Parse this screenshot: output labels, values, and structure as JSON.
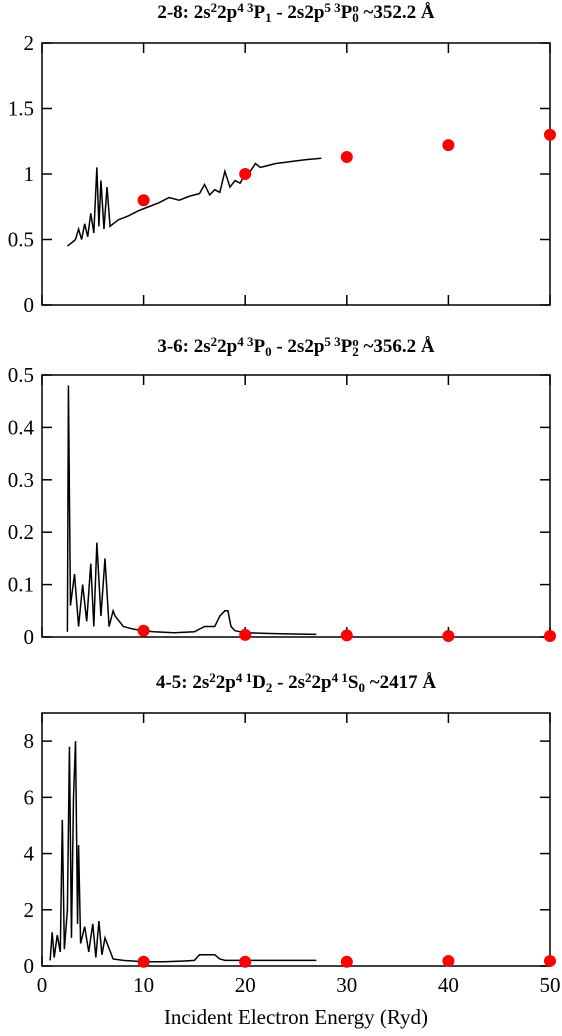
{
  "chart_data": [
    {
      "type": "line",
      "title": [
        {
          "text": "2-8:  2s"
        },
        {
          "sup": "2"
        },
        {
          "text": "2p"
        },
        {
          "sup": "4 3"
        },
        {
          "text": "P"
        },
        {
          "sub": "1"
        },
        {
          "text": " - 2s2p"
        },
        {
          "sup": "5 3"
        },
        {
          "text": "P"
        },
        {
          "sup": "o"
        },
        {
          "sub": "0"
        },
        {
          "text": " ~352.2 Å"
        }
      ],
      "xlim": [
        0,
        50
      ],
      "xticks": [
        0,
        10,
        20,
        30,
        40,
        50
      ],
      "xtick_labels": false,
      "ylim": [
        0,
        2
      ],
      "yticks": [
        0,
        0.5,
        1,
        1.5,
        2
      ],
      "series": [
        {
          "type": "line",
          "color": "#000000",
          "x": [
            2.5,
            3,
            3.3,
            3.6,
            3.9,
            4.2,
            4.5,
            4.8,
            5.1,
            5.4,
            5.6,
            5.8,
            6.1,
            6.4,
            6.7,
            7,
            7.5,
            8.5,
            9.5,
            10.5,
            11.5,
            12.5,
            13.5,
            14.5,
            15.5,
            16,
            16.5,
            17,
            17.5,
            18,
            18.5,
            19,
            19.5,
            20,
            20.5,
            21,
            21.5,
            22,
            23,
            24,
            25,
            26,
            27.5
          ],
          "values": [
            0.45,
            0.48,
            0.5,
            0.58,
            0.5,
            0.62,
            0.52,
            0.7,
            0.55,
            1.05,
            0.6,
            0.95,
            0.58,
            0.9,
            0.6,
            0.62,
            0.65,
            0.68,
            0.72,
            0.75,
            0.78,
            0.82,
            0.8,
            0.83,
            0.85,
            0.92,
            0.84,
            0.88,
            0.86,
            1.02,
            0.9,
            0.95,
            0.93,
            1.0,
            1.02,
            1.08,
            1.05,
            1.06,
            1.08,
            1.09,
            1.1,
            1.11,
            1.12
          ]
        },
        {
          "type": "scatter",
          "color": "#ff0000",
          "x": [
            10,
            20,
            30,
            40,
            50
          ],
          "values": [
            0.8,
            1.0,
            1.13,
            1.22,
            1.3
          ]
        }
      ]
    },
    {
      "type": "line",
      "title": [
        {
          "text": "3-6:  2s"
        },
        {
          "sup": "2"
        },
        {
          "text": "2p"
        },
        {
          "sup": "4 3"
        },
        {
          "text": "P"
        },
        {
          "sub": "0"
        },
        {
          "text": " - 2s2p"
        },
        {
          "sup": "5 3"
        },
        {
          "text": "P"
        },
        {
          "sup": "o"
        },
        {
          "sub": "2"
        },
        {
          "text": "  ~356.2 Å"
        }
      ],
      "xlim": [
        0,
        50
      ],
      "xticks": [
        0,
        10,
        20,
        30,
        40,
        50
      ],
      "xtick_labels": false,
      "ylim": [
        0,
        0.5
      ],
      "yticks": [
        0,
        0.1,
        0.2,
        0.3,
        0.4,
        0.5
      ],
      "series": [
        {
          "type": "line",
          "color": "#000000",
          "x": [
            2.5,
            2.6,
            2.8,
            3.2,
            3.6,
            4,
            4.4,
            4.8,
            5.1,
            5.4,
            5.8,
            6.2,
            6.6,
            7,
            7.2,
            8,
            9,
            10,
            11,
            12,
            13,
            14,
            15,
            16,
            17,
            17.5,
            18,
            18.3,
            18.6,
            19,
            20,
            22,
            24,
            27
          ],
          "values": [
            0.01,
            0.48,
            0.06,
            0.12,
            0.02,
            0.1,
            0.03,
            0.14,
            0.02,
            0.18,
            0.04,
            0.15,
            0.02,
            0.05,
            0.04,
            0.02,
            0.015,
            0.012,
            0.01,
            0.009,
            0.008,
            0.009,
            0.01,
            0.02,
            0.02,
            0.04,
            0.05,
            0.05,
            0.02,
            0.012,
            0.008,
            0.007,
            0.006,
            0.005
          ]
        },
        {
          "type": "scatter",
          "color": "#ff0000",
          "x": [
            10,
            20,
            30,
            40,
            50
          ],
          "values": [
            0.012,
            0.004,
            0.003,
            0.002,
            0.002
          ]
        }
      ]
    },
    {
      "type": "line",
      "title": [
        {
          "text": "4-5:  2s"
        },
        {
          "sup": "2"
        },
        {
          "text": "2p"
        },
        {
          "sup": "4 1"
        },
        {
          "text": "D"
        },
        {
          "sub": "2"
        },
        {
          "text": " - 2s"
        },
        {
          "sup": "2"
        },
        {
          "text": "2p"
        },
        {
          "sup": "4 1"
        },
        {
          "text": "S"
        },
        {
          "sub": "0"
        },
        {
          "text": " ~2417 Å"
        }
      ],
      "xlabel": "Incident Electron Energy (Ryd)",
      "xlim": [
        0,
        50
      ],
      "xticks": [
        0,
        10,
        20,
        30,
        40,
        50
      ],
      "xtick_labels": true,
      "ylim": [
        0,
        9
      ],
      "yticks": [
        0,
        2,
        4,
        6,
        8
      ],
      "series": [
        {
          "type": "line",
          "color": "#000000",
          "x": [
            0.8,
            1,
            1.2,
            1.5,
            1.8,
            2,
            2.2,
            2.5,
            2.7,
            2.9,
            3.1,
            3.3,
            3.5,
            3.6,
            3.8,
            4.2,
            4.6,
            5,
            5.3,
            5.6,
            5.9,
            6.2,
            7,
            8,
            10,
            12,
            14,
            15,
            15.5,
            16,
            17,
            17.5,
            18,
            20,
            22,
            25,
            27
          ],
          "values": [
            0.2,
            1.2,
            0.3,
            1.1,
            0.5,
            5.2,
            0.6,
            2,
            7.8,
            1,
            6,
            8,
            1.5,
            4.3,
            0.8,
            1.4,
            0.5,
            1.5,
            0.3,
            1.6,
            0.4,
            1,
            0.25,
            0.2,
            0.15,
            0.15,
            0.18,
            0.2,
            0.4,
            0.4,
            0.4,
            0.25,
            0.2,
            0.2,
            0.2,
            0.2,
            0.2
          ]
        },
        {
          "type": "scatter",
          "color": "#ff0000",
          "x": [
            10,
            20,
            30,
            40,
            50
          ],
          "values": [
            0.15,
            0.15,
            0.15,
            0.18,
            0.18
          ]
        }
      ]
    }
  ]
}
